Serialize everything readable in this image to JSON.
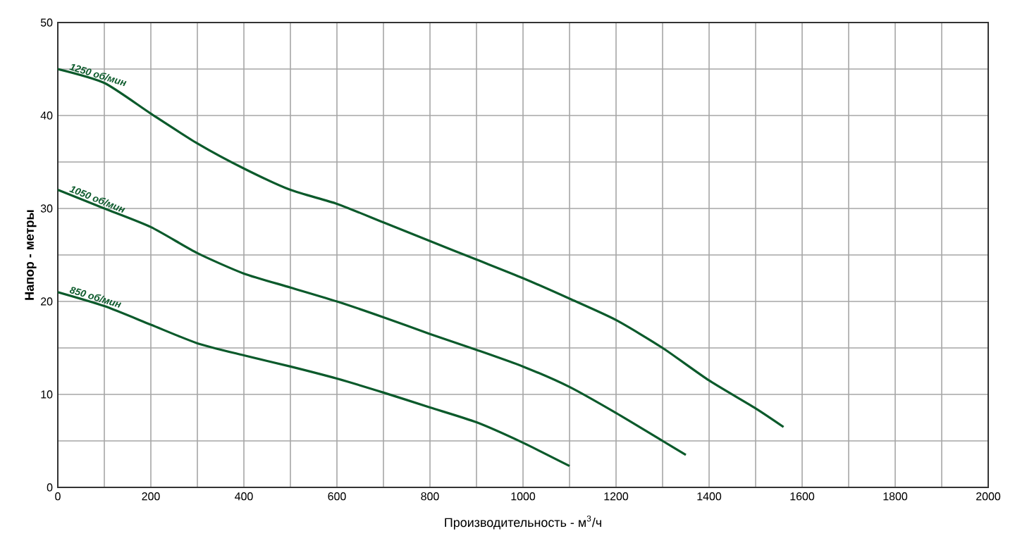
{
  "chart_data": {
    "type": "line",
    "xlabel": "Производительность - м$^{3}$/ч",
    "ylabel": "Напор - метры",
    "xlim": [
      0,
      2000
    ],
    "ylim": [
      0,
      50
    ],
    "xticks": [
      0,
      {
        "value": 100,
        "label": null
      },
      200,
      {
        "value": 300,
        "label": null
      },
      400,
      {
        "value": 500,
        "label": null
      },
      600,
      {
        "value": 700,
        "label": null
      },
      800,
      {
        "value": 900,
        "label": null
      },
      1000,
      {
        "value": 1100,
        "label": null
      },
      1200,
      {
        "value": 1300,
        "label": null
      },
      1400,
      {
        "value": 1500,
        "label": null
      },
      1600,
      {
        "value": 1700,
        "label": null
      },
      1800,
      {
        "value": 1900,
        "label": null
      },
      2000
    ],
    "yticks": [
      0,
      {
        "value": 5,
        "label": null
      },
      10,
      {
        "value": 15,
        "label": null
      },
      20,
      {
        "value": 25,
        "label": null
      },
      30,
      {
        "value": 35,
        "label": null
      },
      40,
      {
        "value": 45,
        "label": null
      },
      50
    ],
    "grid": true,
    "marker": "none",
    "line_style": "solid",
    "series": [
      {
        "name": "1250 об/мин",
        "color": "#0b5a2b",
        "x": [
          0,
          100,
          200,
          300,
          400,
          500,
          600,
          700,
          800,
          900,
          1000,
          1100,
          1200,
          1300,
          1400,
          1500,
          1560
        ],
        "values": [
          45,
          43.5,
          40.2,
          37,
          34.3,
          32,
          30.5,
          28.5,
          26.5,
          24.5,
          22.5,
          20.3,
          18,
          15,
          11.5,
          8.5,
          6.5
        ]
      },
      {
        "name": "1050 об/мин",
        "color": "#0b5a2b",
        "x": [
          0,
          100,
          200,
          300,
          400,
          500,
          600,
          700,
          800,
          900,
          1000,
          1100,
          1200,
          1300,
          1350
        ],
        "values": [
          32,
          30,
          28,
          25.2,
          23,
          21.5,
          20,
          18.3,
          16.5,
          14.8,
          13,
          10.8,
          8,
          5,
          3.5
        ]
      },
      {
        "name": "850 об/мин",
        "color": "#0b5a2b",
        "x": [
          0,
          100,
          200,
          300,
          400,
          500,
          600,
          700,
          800,
          900,
          1000,
          1100
        ],
        "values": [
          21,
          19.5,
          17.5,
          15.5,
          14.2,
          13,
          11.7,
          10.2,
          8.6,
          7,
          4.8,
          2.3
        ]
      }
    ]
  }
}
